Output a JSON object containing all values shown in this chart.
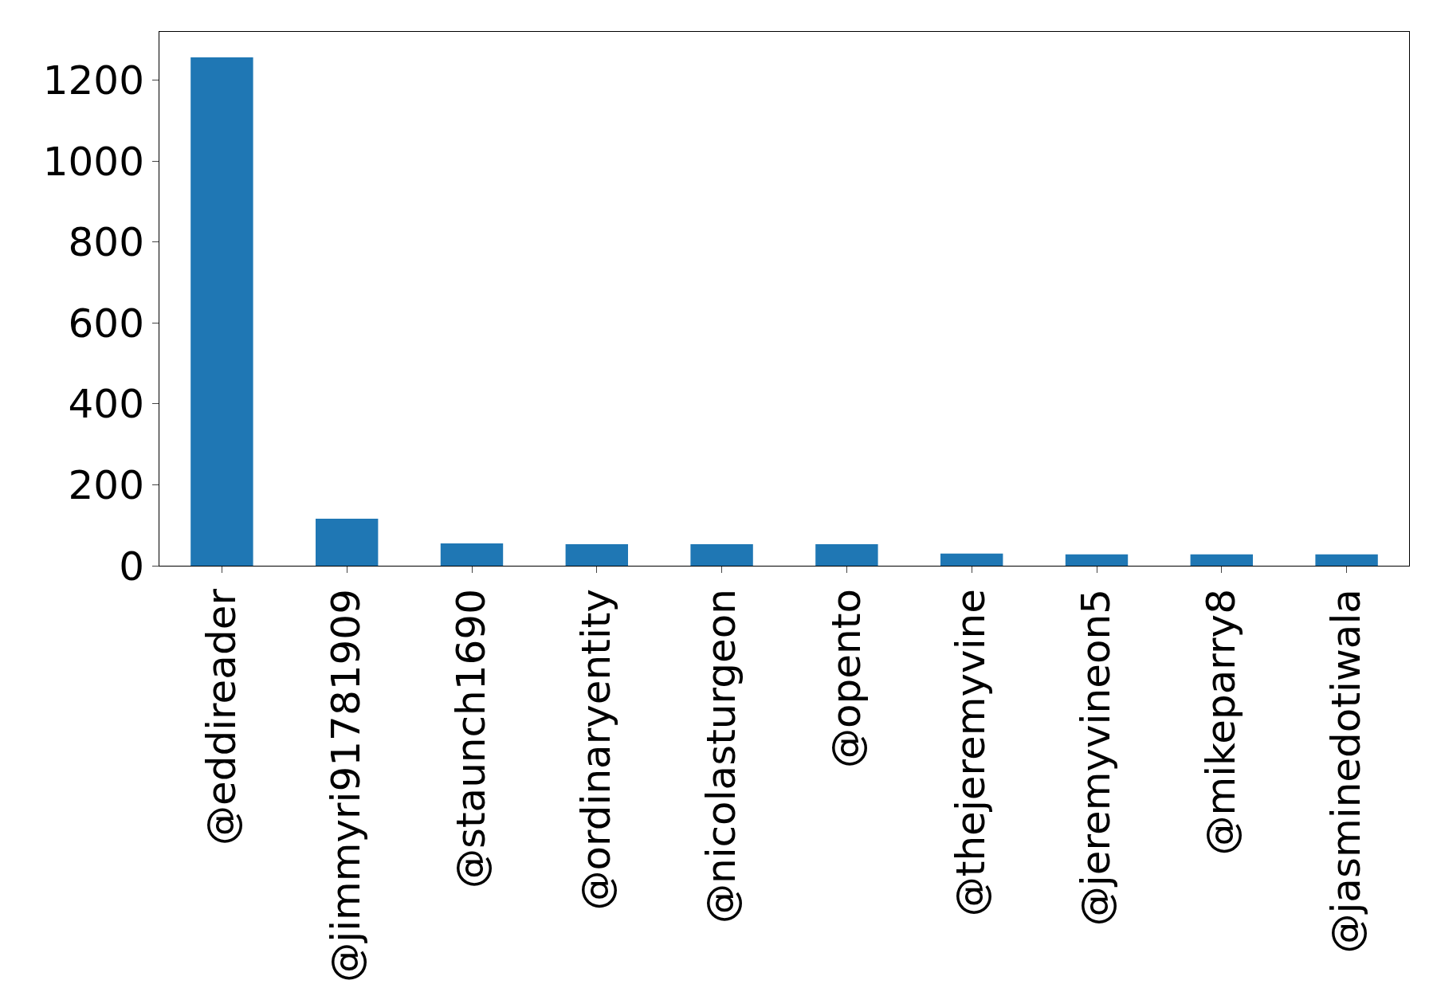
{
  "chart_data": {
    "type": "bar",
    "categories": [
      "@eddireader",
      "@jimmyri91781909",
      "@staunch1690",
      "@ordinaryentity",
      "@nicolasturgeon",
      "@opento",
      "@thejeremyvine",
      "@jeremyvineon5",
      "@mikeparry8",
      "@jasminedotiwala"
    ],
    "values": [
      1257,
      116,
      55,
      53,
      53,
      53,
      30,
      28,
      28,
      28
    ],
    "color": "#1f77b4",
    "ylim": [
      0,
      1320
    ],
    "yticks": [
      0,
      200,
      400,
      600,
      800,
      1000,
      1200
    ],
    "legend": false
  }
}
